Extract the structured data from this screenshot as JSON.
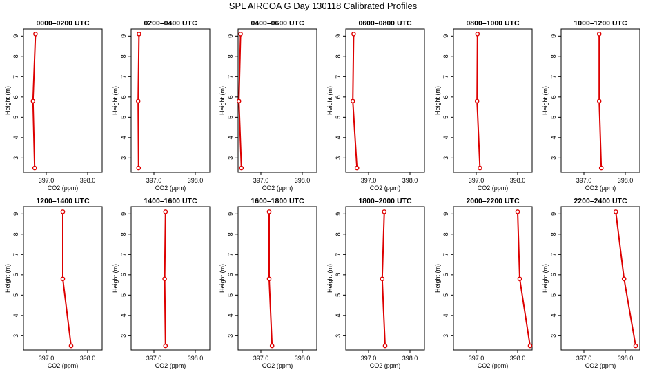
{
  "title": "SPL AIRCOA G  Day 130118  Calibrated Profiles",
  "colors": {
    "line": "#dd0000",
    "marker": "#dd0000",
    "axis": "#000000"
  },
  "chart_data": [
    {
      "type": "line",
      "title": "0000–0200 UTC",
      "xlabel": "CO2 (ppm)",
      "ylabel": "Height (m)",
      "xlim": [
        396.45,
        398.35
      ],
      "ylim": [
        2.3,
        9.35
      ],
      "xticks": [
        397.0,
        398.0
      ],
      "xtick_labels": [
        "397.0",
        "398.0"
      ],
      "yticks": [
        3,
        4,
        5,
        6,
        7,
        8,
        9
      ],
      "ytick_labels": [
        "3",
        "4",
        "5",
        "6",
        "7",
        "8",
        "9"
      ],
      "series": [
        {
          "x": [
            396.72,
            396.68,
            396.74
          ],
          "y": [
            2.5,
            5.8,
            9.1
          ]
        }
      ]
    },
    {
      "type": "line",
      "title": "0200–0400 UTC",
      "xlabel": "CO2 (ppm)",
      "ylabel": "Height (m)",
      "xlim": [
        396.45,
        398.35
      ],
      "ylim": [
        2.3,
        9.35
      ],
      "xticks": [
        397.0,
        398.0
      ],
      "xtick_labels": [
        "397.0",
        "398.0"
      ],
      "yticks": [
        3,
        4,
        5,
        6,
        7,
        8,
        9
      ],
      "ytick_labels": [
        "3",
        "4",
        "5",
        "6",
        "7",
        "8",
        "9"
      ],
      "series": [
        {
          "x": [
            396.63,
            396.62,
            396.64
          ],
          "y": [
            2.5,
            5.8,
            9.1
          ]
        }
      ]
    },
    {
      "type": "line",
      "title": "0400–0600 UTC",
      "xlabel": "CO2 (ppm)",
      "ylabel": "Height (m)",
      "xlim": [
        396.45,
        398.35
      ],
      "ylim": [
        2.3,
        9.35
      ],
      "xticks": [
        397.0,
        398.0
      ],
      "xtick_labels": [
        "397.0",
        "398.0"
      ],
      "yticks": [
        3,
        4,
        5,
        6,
        7,
        8,
        9
      ],
      "ytick_labels": [
        "3",
        "4",
        "5",
        "6",
        "7",
        "8",
        "9"
      ],
      "series": [
        {
          "x": [
            396.53,
            396.47,
            396.51
          ],
          "y": [
            2.5,
            5.8,
            9.1
          ]
        }
      ]
    },
    {
      "type": "line",
      "title": "0600–0800 UTC",
      "xlabel": "CO2 (ppm)",
      "ylabel": "Height (m)",
      "xlim": [
        396.45,
        398.35
      ],
      "ylim": [
        2.3,
        9.35
      ],
      "xticks": [
        397.0,
        398.0
      ],
      "xtick_labels": [
        "397.0",
        "398.0"
      ],
      "yticks": [
        3,
        4,
        5,
        6,
        7,
        8,
        9
      ],
      "ytick_labels": [
        "3",
        "4",
        "5",
        "6",
        "7",
        "8",
        "9"
      ],
      "series": [
        {
          "x": [
            396.72,
            396.62,
            396.64
          ],
          "y": [
            2.5,
            5.8,
            9.1
          ]
        }
      ]
    },
    {
      "type": "line",
      "title": "0800–1000 UTC",
      "xlabel": "CO2 (ppm)",
      "ylabel": "Height (m)",
      "xlim": [
        396.45,
        398.35
      ],
      "ylim": [
        2.3,
        9.35
      ],
      "xticks": [
        397.0,
        398.0
      ],
      "xtick_labels": [
        "397.0",
        "398.0"
      ],
      "yticks": [
        3,
        4,
        5,
        6,
        7,
        8,
        9
      ],
      "ytick_labels": [
        "3",
        "4",
        "5",
        "6",
        "7",
        "8",
        "9"
      ],
      "series": [
        {
          "x": [
            397.09,
            397.02,
            397.03
          ],
          "y": [
            2.5,
            5.8,
            9.1
          ]
        }
      ]
    },
    {
      "type": "line",
      "title": "1000–1200 UTC",
      "xlabel": "CO2 (ppm)",
      "ylabel": "Height (m)",
      "xlim": [
        396.45,
        398.35
      ],
      "ylim": [
        2.3,
        9.35
      ],
      "xticks": [
        397.0,
        398.0
      ],
      "xtick_labels": [
        "397.0",
        "398.0"
      ],
      "yticks": [
        3,
        4,
        5,
        6,
        7,
        8,
        9
      ],
      "ytick_labels": [
        "3",
        "4",
        "5",
        "6",
        "7",
        "8",
        "9"
      ],
      "series": [
        {
          "x": [
            397.42,
            397.37,
            397.37
          ],
          "y": [
            2.5,
            5.8,
            9.1
          ]
        }
      ]
    },
    {
      "type": "line",
      "title": "1200–1400 UTC",
      "xlabel": "CO2 (ppm)",
      "ylabel": "Height (m)",
      "xlim": [
        396.45,
        398.35
      ],
      "ylim": [
        2.3,
        9.35
      ],
      "xticks": [
        397.0,
        398.0
      ],
      "xtick_labels": [
        "397.0",
        "398.0"
      ],
      "yticks": [
        3,
        4,
        5,
        6,
        7,
        8,
        9
      ],
      "ytick_labels": [
        "3",
        "4",
        "5",
        "6",
        "7",
        "8",
        "9"
      ],
      "series": [
        {
          "x": [
            397.6,
            397.4,
            397.4
          ],
          "y": [
            2.5,
            5.8,
            9.1
          ]
        }
      ]
    },
    {
      "type": "line",
      "title": "1400–1600 UTC",
      "xlabel": "CO2 (ppm)",
      "ylabel": "Height (m)",
      "xlim": [
        396.45,
        398.35
      ],
      "ylim": [
        2.3,
        9.35
      ],
      "xticks": [
        397.0,
        398.0
      ],
      "xtick_labels": [
        "397.0",
        "398.0"
      ],
      "yticks": [
        3,
        4,
        5,
        6,
        7,
        8,
        9
      ],
      "ytick_labels": [
        "3",
        "4",
        "5",
        "6",
        "7",
        "8",
        "9"
      ],
      "series": [
        {
          "x": [
            397.28,
            397.26,
            397.28
          ],
          "y": [
            2.5,
            5.8,
            9.1
          ]
        }
      ]
    },
    {
      "type": "line",
      "title": "1600–1800 UTC",
      "xlabel": "CO2 (ppm)",
      "ylabel": "Height (m)",
      "xlim": [
        396.45,
        398.35
      ],
      "ylim": [
        2.3,
        9.35
      ],
      "xticks": [
        397.0,
        398.0
      ],
      "xtick_labels": [
        "397.0",
        "398.0"
      ],
      "yticks": [
        3,
        4,
        5,
        6,
        7,
        8,
        9
      ],
      "ytick_labels": [
        "3",
        "4",
        "5",
        "6",
        "7",
        "8",
        "9"
      ],
      "series": [
        {
          "x": [
            397.27,
            397.2,
            397.2
          ],
          "y": [
            2.5,
            5.8,
            9.1
          ]
        }
      ]
    },
    {
      "type": "line",
      "title": "1800–2000 UTC",
      "xlabel": "CO2 (ppm)",
      "ylabel": "Height (m)",
      "xlim": [
        396.45,
        398.35
      ],
      "ylim": [
        2.3,
        9.35
      ],
      "xticks": [
        397.0,
        398.0
      ],
      "xtick_labels": [
        "397.0",
        "398.0"
      ],
      "yticks": [
        3,
        4,
        5,
        6,
        7,
        8,
        9
      ],
      "ytick_labels": [
        "3",
        "4",
        "5",
        "6",
        "7",
        "8",
        "9"
      ],
      "series": [
        {
          "x": [
            397.4,
            397.33,
            397.38
          ],
          "y": [
            2.5,
            5.8,
            9.1
          ]
        }
      ]
    },
    {
      "type": "line",
      "title": "2000–2200 UTC",
      "xlabel": "CO2 (ppm)",
      "ylabel": "Height (m)",
      "xlim": [
        396.45,
        398.35
      ],
      "ylim": [
        2.3,
        9.35
      ],
      "xticks": [
        397.0,
        398.0
      ],
      "xtick_labels": [
        "397.0",
        "398.0"
      ],
      "yticks": [
        3,
        4,
        5,
        6,
        7,
        8,
        9
      ],
      "ytick_labels": [
        "3",
        "4",
        "5",
        "6",
        "7",
        "8",
        "9"
      ],
      "series": [
        {
          "x": [
            398.3,
            398.05,
            398.0
          ],
          "y": [
            2.5,
            5.8,
            9.1
          ]
        }
      ]
    },
    {
      "type": "line",
      "title": "2200–2400 UTC",
      "xlabel": "CO2 (ppm)",
      "ylabel": "Height (m)",
      "xlim": [
        396.45,
        398.35
      ],
      "ylim": [
        2.3,
        9.35
      ],
      "xticks": [
        397.0,
        398.0
      ],
      "xtick_labels": [
        "397.0",
        "398.0"
      ],
      "yticks": [
        3,
        4,
        5,
        6,
        7,
        8,
        9
      ],
      "ytick_labels": [
        "3",
        "4",
        "5",
        "6",
        "7",
        "8",
        "9"
      ],
      "series": [
        {
          "x": [
            398.25,
            397.97,
            397.77
          ],
          "y": [
            2.5,
            5.8,
            9.1
          ]
        }
      ]
    }
  ]
}
